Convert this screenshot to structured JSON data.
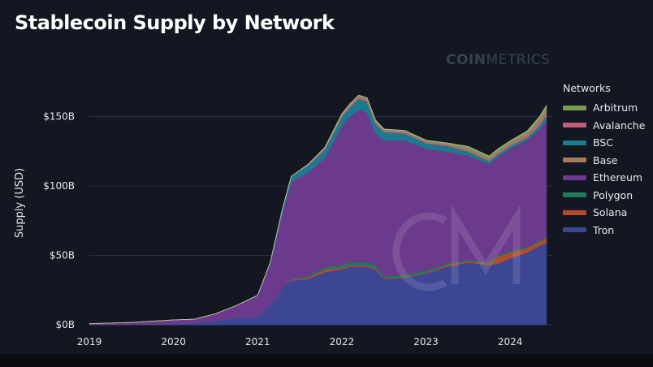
{
  "title": "Stablecoin Supply by Network",
  "watermark": {
    "bold": "COIN",
    "light": "METRICS"
  },
  "chart_data": {
    "type": "area",
    "stacked": true,
    "title": "Stablecoin Supply by Network",
    "xlabel": "",
    "ylabel": "Supply (USD)",
    "ylim": [
      0,
      165
    ],
    "xlim": [
      2019.0,
      2024.5
    ],
    "y_unit": "billion USD",
    "grid": true,
    "legend_title": "Networks",
    "legend_position": "right",
    "x_ticks": [
      {
        "value": 2019,
        "label": "2019"
      },
      {
        "value": 2020,
        "label": "2020"
      },
      {
        "value": 2021,
        "label": "2021"
      },
      {
        "value": 2022,
        "label": "2022"
      },
      {
        "value": 2023,
        "label": "2023"
      },
      {
        "value": 2024,
        "label": "2024"
      }
    ],
    "y_ticks": [
      {
        "value": 0,
        "label": "$0B"
      },
      {
        "value": 50,
        "label": "$50B"
      },
      {
        "value": 100,
        "label": "$100B"
      },
      {
        "value": 150,
        "label": "$150B"
      }
    ],
    "x": [
      2019.0,
      2019.5,
      2020.0,
      2020.25,
      2020.5,
      2020.75,
      2021.0,
      2021.15,
      2021.3,
      2021.4,
      2021.6,
      2021.8,
      2022.0,
      2022.1,
      2022.2,
      2022.3,
      2022.4,
      2022.5,
      2022.75,
      2023.0,
      2023.25,
      2023.5,
      2023.75,
      2023.85,
      2024.0,
      2024.2,
      2024.35,
      2024.43
    ],
    "series": [
      {
        "name": "Tron",
        "color": "#3d4694",
        "values": [
          0,
          0.2,
          0.5,
          1.5,
          3,
          5,
          6,
          14,
          27,
          32,
          33,
          38,
          40,
          42,
          42,
          42,
          40,
          33,
          34,
          37,
          42,
          45,
          43,
          44,
          48,
          52,
          57,
          59
        ]
      },
      {
        "name": "Solana",
        "color": "#b34a2e",
        "values": [
          0,
          0,
          0,
          0,
          0,
          0,
          0,
          0,
          0,
          0.5,
          1,
          2,
          1,
          1,
          1,
          1,
          1,
          0.5,
          0.5,
          0.5,
          1,
          1,
          1,
          5,
          4,
          3,
          3,
          3
        ]
      },
      {
        "name": "Polygon",
        "color": "#1f7a5c",
        "values": [
          0,
          0,
          0,
          0,
          0,
          0,
          0,
          0,
          0,
          0.5,
          1,
          1.5,
          2,
          2,
          2,
          2,
          2,
          1.5,
          1.5,
          1.5,
          1,
          1,
          1,
          1,
          1,
          1,
          1,
          1
        ]
      },
      {
        "name": "Ethereum",
        "color": "#6b3a8c",
        "values": [
          0.8,
          1.5,
          3,
          2.5,
          5,
          9,
          15,
          30,
          55,
          70,
          75,
          79,
          100,
          105,
          110,
          108,
          95,
          98,
          97,
          88,
          81,
          75,
          71,
          71,
          74,
          77,
          80,
          85
        ]
      },
      {
        "name": "BSC",
        "color": "#1c7a8c",
        "values": [
          0,
          0,
          0,
          0,
          0,
          0,
          0.3,
          1,
          3,
          4,
          5,
          6,
          7,
          7,
          8,
          8,
          7,
          6,
          5,
          4,
          4,
          3,
          2,
          2,
          2,
          2,
          3,
          3
        ]
      },
      {
        "name": "Base",
        "color": "#a9795a",
        "values": [
          0,
          0,
          0,
          0,
          0,
          0,
          0,
          0,
          0,
          0,
          0,
          0,
          0,
          0,
          0,
          0,
          0,
          0,
          0,
          0,
          0,
          0.5,
          0.5,
          0.5,
          0.5,
          1,
          1.5,
          2
        ]
      },
      {
        "name": "Avalanche",
        "color": "#c75a7a",
        "values": [
          0,
          0,
          0,
          0,
          0,
          0,
          0,
          0,
          0,
          0,
          0.5,
          1,
          1,
          1.5,
          1.5,
          1.5,
          1.5,
          1,
          1,
          1,
          1,
          1,
          1,
          1,
          1,
          1.5,
          1.5,
          2
        ]
      },
      {
        "name": "Arbitrum",
        "color": "#7a9a4f",
        "values": [
          0,
          0,
          0,
          0,
          0,
          0,
          0,
          0,
          0,
          0,
          0.2,
          0.5,
          1,
          1,
          1,
          1,
          1,
          1,
          1,
          1,
          1,
          2,
          2,
          2,
          2,
          2,
          3,
          3
        ]
      }
    ],
    "legend_order": [
      "Arbitrum",
      "Avalanche",
      "BSC",
      "Base",
      "Ethereum",
      "Polygon",
      "Solana",
      "Tron"
    ]
  }
}
